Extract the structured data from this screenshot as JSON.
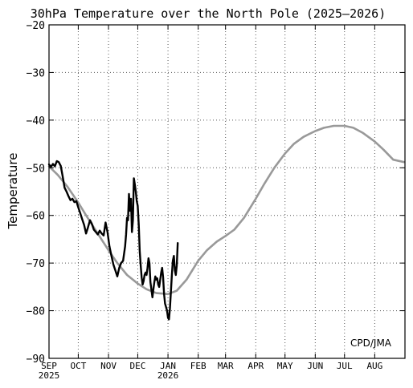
{
  "chart_data": {
    "type": "line",
    "title": "30hPa Temperature over the North Pole (2025–2026)",
    "ylabel": "Temperature",
    "xlabel": "",
    "ylim": [
      -90,
      -20
    ],
    "xlim": [
      "2025-09-01",
      "2026-09-01"
    ],
    "y_ticks": [
      "−20",
      "−30",
      "−40",
      "−50",
      "−60",
      "−70",
      "−80",
      "−90"
    ],
    "x_ticks": [
      {
        "label": "SEP",
        "year": "2025",
        "date": "2025-09-01"
      },
      {
        "label": "OCT",
        "date": "2025-10-01"
      },
      {
        "label": "NOV",
        "date": "2025-11-01"
      },
      {
        "label": "DEC",
        "date": "2025-12-01"
      },
      {
        "label": "JAN",
        "year": "2026",
        "date": "2026-01-01"
      },
      {
        "label": "FEB",
        "date": "2026-02-01"
      },
      {
        "label": "MAR",
        "date": "2026-03-01"
      },
      {
        "label": "APR",
        "date": "2026-04-01"
      },
      {
        "label": "MAY",
        "date": "2026-05-01"
      },
      {
        "label": "JUN",
        "date": "2026-06-01"
      },
      {
        "label": "JUL",
        "date": "2026-07-01"
      },
      {
        "label": "AUG",
        "date": "2026-08-01"
      }
    ],
    "grid": true,
    "credit": "CPD/JMA",
    "series": [
      {
        "color": "#999999",
        "points": [
          [
            "2025-09-01",
            -49.7
          ],
          [
            "2025-09-10",
            -51.5
          ],
          [
            "2025-09-20",
            -54.0
          ],
          [
            "2025-10-01",
            -57.3
          ],
          [
            "2025-10-10",
            -60.3
          ],
          [
            "2025-10-20",
            -63.5
          ],
          [
            "2025-11-01",
            -67.3
          ],
          [
            "2025-11-10",
            -70.0
          ],
          [
            "2025-11-20",
            -72.5
          ],
          [
            "2025-12-01",
            -74.3
          ],
          [
            "2025-12-10",
            -75.5
          ],
          [
            "2025-12-20",
            -76.3
          ],
          [
            "2026-01-01",
            -76.5
          ],
          [
            "2026-01-10",
            -75.8
          ],
          [
            "2026-01-20",
            -73.5
          ],
          [
            "2026-02-01",
            -69.5
          ],
          [
            "2026-02-10",
            -67.3
          ],
          [
            "2026-02-20",
            -65.5
          ],
          [
            "2026-03-01",
            -64.3
          ],
          [
            "2026-03-10",
            -63.0
          ],
          [
            "2026-03-20",
            -60.5
          ],
          [
            "2026-04-01",
            -56.5
          ],
          [
            "2026-04-10",
            -53.3
          ],
          [
            "2026-04-20",
            -50.0
          ],
          [
            "2026-05-01",
            -47.0
          ],
          [
            "2026-05-10",
            -45.0
          ],
          [
            "2026-05-20",
            -43.5
          ],
          [
            "2026-06-01",
            -42.3
          ],
          [
            "2026-06-10",
            -41.6
          ],
          [
            "2026-06-20",
            -41.2
          ],
          [
            "2026-07-01",
            -41.2
          ],
          [
            "2026-07-10",
            -41.6
          ],
          [
            "2026-07-20",
            -42.7
          ],
          [
            "2026-08-01",
            -44.5
          ],
          [
            "2026-08-10",
            -46.2
          ],
          [
            "2026-08-20",
            -48.3
          ],
          [
            "2026-08-31",
            -48.8
          ]
        ]
      },
      {
        "color": "#000000",
        "points": [
          [
            "2025-09-01",
            -49.3
          ],
          [
            "2025-09-03",
            -49.8
          ],
          [
            "2025-09-05",
            -49.2
          ],
          [
            "2025-09-07",
            -49.7
          ],
          [
            "2025-09-09",
            -48.6
          ],
          [
            "2025-09-11",
            -48.8
          ],
          [
            "2025-09-13",
            -49.6
          ],
          [
            "2025-09-15",
            -51.8
          ],
          [
            "2025-09-17",
            -54.2
          ],
          [
            "2025-09-19",
            -55.0
          ],
          [
            "2025-09-21",
            -56.0
          ],
          [
            "2025-09-23",
            -56.8
          ],
          [
            "2025-09-25",
            -56.5
          ],
          [
            "2025-09-27",
            -57.2
          ],
          [
            "2025-09-29",
            -57.0
          ],
          [
            "2025-10-01",
            -58.3
          ],
          [
            "2025-10-03",
            -59.5
          ],
          [
            "2025-10-05",
            -60.8
          ],
          [
            "2025-10-07",
            -62.0
          ],
          [
            "2025-10-09",
            -63.8
          ],
          [
            "2025-10-11",
            -62.5
          ],
          [
            "2025-10-13",
            -61.0
          ],
          [
            "2025-10-15",
            -61.8
          ],
          [
            "2025-10-17",
            -63.0
          ],
          [
            "2025-10-19",
            -63.5
          ],
          [
            "2025-10-21",
            -64.0
          ],
          [
            "2025-10-23",
            -63.2
          ],
          [
            "2025-10-25",
            -63.8
          ],
          [
            "2025-10-27",
            -64.2
          ],
          [
            "2025-10-29",
            -61.5
          ],
          [
            "2025-10-31",
            -63.5
          ],
          [
            "2025-11-02",
            -66.5
          ],
          [
            "2025-11-04",
            -68.5
          ],
          [
            "2025-11-06",
            -70.3
          ],
          [
            "2025-11-08",
            -71.5
          ],
          [
            "2025-11-10",
            -72.8
          ],
          [
            "2025-11-12",
            -71.0
          ],
          [
            "2025-11-14",
            -70.0
          ],
          [
            "2025-11-16",
            -69.5
          ],
          [
            "2025-11-18",
            -66.5
          ],
          [
            "2025-11-19",
            -64.0
          ],
          [
            "2025-11-20",
            -60.5
          ],
          [
            "2025-11-21",
            -61.0
          ],
          [
            "2025-11-22",
            -55.5
          ],
          [
            "2025-11-23",
            -59.0
          ],
          [
            "2025-11-24",
            -56.5
          ],
          [
            "2025-11-25",
            -63.5
          ],
          [
            "2025-11-26",
            -61.0
          ],
          [
            "2025-11-27",
            -52.2
          ],
          [
            "2025-11-28",
            -53.5
          ],
          [
            "2025-11-29",
            -55.0
          ],
          [
            "2025-11-30",
            -57.0
          ],
          [
            "2025-12-01",
            -58.0
          ],
          [
            "2025-12-02",
            -62.0
          ],
          [
            "2025-12-03",
            -67.5
          ],
          [
            "2025-12-04",
            -70.5
          ],
          [
            "2025-12-05",
            -73.0
          ],
          [
            "2025-12-06",
            -74.5
          ],
          [
            "2025-12-07",
            -73.8
          ],
          [
            "2025-12-08",
            -72.5
          ],
          [
            "2025-12-09",
            -72.0
          ],
          [
            "2025-12-10",
            -72.5
          ],
          [
            "2025-12-11",
            -71.0
          ],
          [
            "2025-12-12",
            -69.0
          ],
          [
            "2025-12-13",
            -70.0
          ],
          [
            "2025-12-14",
            -74.0
          ],
          [
            "2025-12-15",
            -75.5
          ],
          [
            "2025-12-16",
            -77.2
          ],
          [
            "2025-12-17",
            -75.5
          ],
          [
            "2025-12-18",
            -74.0
          ],
          [
            "2025-12-19",
            -72.8
          ],
          [
            "2025-12-20",
            -73.5
          ],
          [
            "2025-12-21",
            -73.2
          ],
          [
            "2025-12-22",
            -74.5
          ],
          [
            "2025-12-23",
            -75.0
          ],
          [
            "2025-12-24",
            -73.5
          ],
          [
            "2025-12-25",
            -72.0
          ],
          [
            "2025-12-26",
            -71.0
          ],
          [
            "2025-12-27",
            -73.0
          ],
          [
            "2025-12-28",
            -76.5
          ],
          [
            "2025-12-29",
            -78.5
          ],
          [
            "2025-12-30",
            -79.2
          ],
          [
            "2025-12-31",
            -80.0
          ],
          [
            "2026-01-01",
            -81.5
          ],
          [
            "2026-01-02",
            -81.8
          ],
          [
            "2026-01-03",
            -79.5
          ],
          [
            "2026-01-04",
            -76.0
          ],
          [
            "2026-01-05",
            -72.5
          ],
          [
            "2026-01-06",
            -69.5
          ],
          [
            "2026-01-07",
            -68.5
          ],
          [
            "2026-01-08",
            -71.5
          ],
          [
            "2026-01-09",
            -72.5
          ],
          [
            "2026-01-10",
            -70.5
          ],
          [
            "2026-01-11",
            -65.8
          ]
        ]
      }
    ]
  }
}
